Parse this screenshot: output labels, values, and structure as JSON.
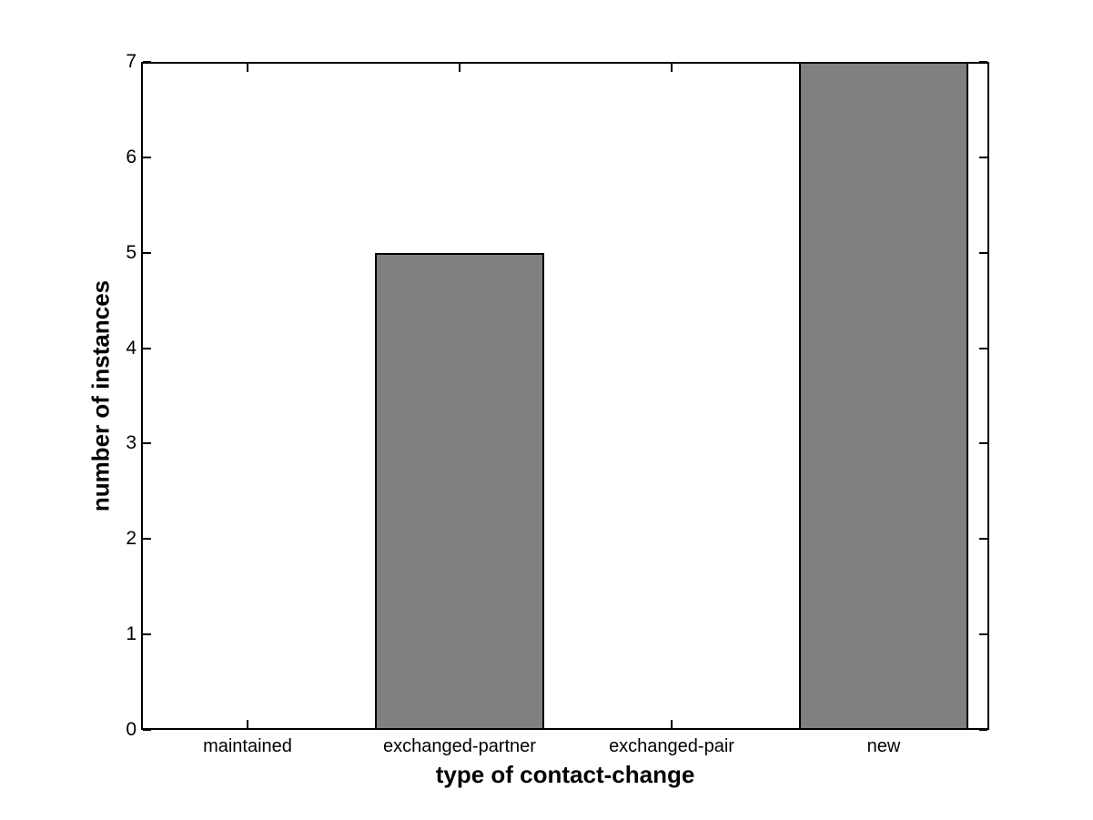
{
  "chart_data": {
    "type": "bar",
    "title": "",
    "categories": [
      "maintained",
      "exchanged-partner",
      "exchanged-pair",
      "new"
    ],
    "values": [
      0,
      5,
      0,
      7
    ],
    "xlabel": "type of contact-change",
    "ylabel": "number of instances",
    "ylim": [
      0,
      7
    ],
    "yticks": [
      0,
      1,
      2,
      3,
      4,
      5,
      6,
      7
    ],
    "bar_width_fraction": 0.8,
    "grid": false,
    "legend_position": "none",
    "colors": {
      "bar_fill": "#808080",
      "bar_edge": "#000000",
      "axis": "#000000",
      "background": "#ffffff",
      "text": "#000000"
    }
  }
}
